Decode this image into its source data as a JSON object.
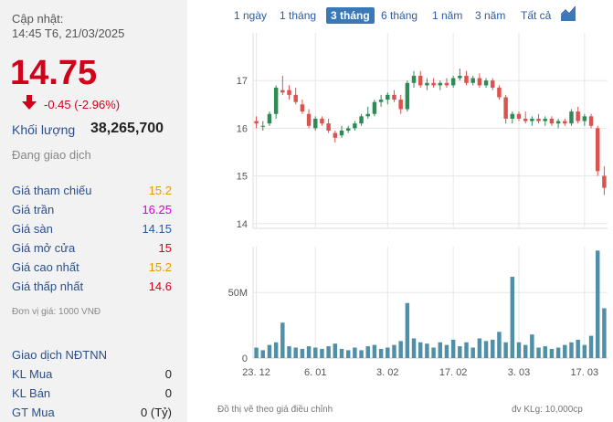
{
  "updated": {
    "label": "Cập nhật:",
    "datetime": "14:45 T6, 21/03/2025"
  },
  "price": {
    "value": "14.75",
    "change": "-0.45 (-2.96%)",
    "color": "#d0021b"
  },
  "volume": {
    "label": "Khối lượng",
    "value": "38,265,700"
  },
  "status": "Đang giao dịch",
  "stats": [
    {
      "label": "Giá tham chiếu",
      "value": "15.2",
      "color": "#e39a00"
    },
    {
      "label": "Giá trần",
      "value": "16.25",
      "color": "#d400d4"
    },
    {
      "label": "Giá sàn",
      "value": "14.15",
      "color": "#1a5fb0"
    },
    {
      "label": "Giá mở cửa",
      "value": "15",
      "color": "#d0021b"
    },
    {
      "label": "Giá cao nhất",
      "value": "15.2",
      "color": "#e39a00"
    },
    {
      "label": "Giá thấp nhất",
      "value": "14.6",
      "color": "#d0021b"
    }
  ],
  "unit_note": "Đơn vị giá: 1000 VNĐ",
  "foreign": {
    "title": "Giao dịch NĐTNN",
    "rows": [
      {
        "label": "KL Mua",
        "value": "0"
      },
      {
        "label": "KL Bán",
        "value": "0"
      },
      {
        "label": "GT Mua",
        "value": "0 (Tỷ)"
      }
    ]
  },
  "tabs": [
    "1 ngày",
    "1 tháng",
    "3 tháng",
    "6 tháng",
    "1 năm",
    "3 năm",
    "Tất cả"
  ],
  "active_tab": "3 tháng",
  "footer": {
    "note": "Đồ thị vẽ theo giá điều chỉnh",
    "unit": "đv KLg: 10,000cp"
  },
  "chart_data": {
    "type": "candlestick",
    "price_axis": {
      "ticks": [
        14,
        15,
        16,
        17
      ],
      "ylim": [
        13.9,
        18.0
      ]
    },
    "volume_axis": {
      "ticks": [
        "0",
        "50M"
      ],
      "tick_values": [
        0,
        50000000
      ],
      "ylim": [
        0,
        85000000
      ]
    },
    "x_ticks": [
      {
        "label": "23. 12",
        "index": 0
      },
      {
        "label": "6. 01",
        "index": 9
      },
      {
        "label": "3. 02",
        "index": 20
      },
      {
        "label": "17. 02",
        "index": 30
      },
      {
        "label": "3. 03",
        "index": 40
      },
      {
        "label": "17. 03",
        "index": 50
      }
    ],
    "up_color": "#2e8b57",
    "down_color": "#d9534f",
    "candles": [
      {
        "o": 16.15,
        "h": 16.25,
        "l": 16.0,
        "c": 16.1,
        "v": 8000000
      },
      {
        "o": 16.05,
        "h": 16.15,
        "l": 15.95,
        "c": 16.05,
        "v": 6000000
      },
      {
        "o": 16.1,
        "h": 16.35,
        "l": 16.05,
        "c": 16.3,
        "v": 10000000
      },
      {
        "o": 16.3,
        "h": 16.9,
        "l": 16.2,
        "c": 16.85,
        "v": 12000000
      },
      {
        "o": 16.8,
        "h": 17.1,
        "l": 16.7,
        "c": 16.75,
        "v": 27000000
      },
      {
        "o": 16.8,
        "h": 16.9,
        "l": 16.6,
        "c": 16.7,
        "v": 9000000
      },
      {
        "o": 16.7,
        "h": 16.85,
        "l": 16.5,
        "c": 16.55,
        "v": 8000000
      },
      {
        "o": 16.5,
        "h": 16.6,
        "l": 16.3,
        "c": 16.35,
        "v": 7000000
      },
      {
        "o": 16.3,
        "h": 16.4,
        "l": 16.0,
        "c": 16.05,
        "v": 9000000
      },
      {
        "o": 16.0,
        "h": 16.25,
        "l": 15.95,
        "c": 16.2,
        "v": 8000000
      },
      {
        "o": 16.2,
        "h": 16.25,
        "l": 16.05,
        "c": 16.1,
        "v": 7000000
      },
      {
        "o": 16.1,
        "h": 16.2,
        "l": 15.9,
        "c": 15.95,
        "v": 9000000
      },
      {
        "o": 15.9,
        "h": 15.95,
        "l": 15.7,
        "c": 15.8,
        "v": 11000000
      },
      {
        "o": 15.85,
        "h": 16.05,
        "l": 15.8,
        "c": 15.95,
        "v": 7000000
      },
      {
        "o": 15.95,
        "h": 16.05,
        "l": 15.9,
        "c": 16.0,
        "v": 6000000
      },
      {
        "o": 16.0,
        "h": 16.15,
        "l": 15.95,
        "c": 16.1,
        "v": 8000000
      },
      {
        "o": 16.1,
        "h": 16.3,
        "l": 16.05,
        "c": 16.25,
        "v": 6000000
      },
      {
        "o": 16.25,
        "h": 16.45,
        "l": 16.2,
        "c": 16.3,
        "v": 9000000
      },
      {
        "o": 16.3,
        "h": 16.6,
        "l": 16.25,
        "c": 16.55,
        "v": 10000000
      },
      {
        "o": 16.55,
        "h": 16.7,
        "l": 16.45,
        "c": 16.6,
        "v": 7000000
      },
      {
        "o": 16.6,
        "h": 16.75,
        "l": 16.5,
        "c": 16.7,
        "v": 8000000
      },
      {
        "o": 16.7,
        "h": 16.8,
        "l": 16.55,
        "c": 16.6,
        "v": 10000000
      },
      {
        "o": 16.6,
        "h": 16.7,
        "l": 16.3,
        "c": 16.4,
        "v": 13000000
      },
      {
        "o": 16.4,
        "h": 17.0,
        "l": 16.35,
        "c": 16.95,
        "v": 42000000
      },
      {
        "o": 16.95,
        "h": 17.2,
        "l": 16.85,
        "c": 17.1,
        "v": 15000000
      },
      {
        "o": 17.1,
        "h": 17.2,
        "l": 16.85,
        "c": 16.9,
        "v": 12000000
      },
      {
        "o": 16.9,
        "h": 17.05,
        "l": 16.8,
        "c": 16.95,
        "v": 11000000
      },
      {
        "o": 16.95,
        "h": 17.05,
        "l": 16.85,
        "c": 16.9,
        "v": 8000000
      },
      {
        "o": 16.9,
        "h": 17.0,
        "l": 16.8,
        "c": 16.95,
        "v": 12000000
      },
      {
        "o": 16.95,
        "h": 17.05,
        "l": 16.85,
        "c": 16.9,
        "v": 10000000
      },
      {
        "o": 16.9,
        "h": 17.1,
        "l": 16.85,
        "c": 17.05,
        "v": 14000000
      },
      {
        "o": 17.05,
        "h": 17.25,
        "l": 17.0,
        "c": 17.1,
        "v": 9000000
      },
      {
        "o": 17.1,
        "h": 17.2,
        "l": 16.9,
        "c": 16.95,
        "v": 12000000
      },
      {
        "o": 16.95,
        "h": 17.1,
        "l": 16.9,
        "c": 17.05,
        "v": 8000000
      },
      {
        "o": 17.05,
        "h": 17.15,
        "l": 16.85,
        "c": 16.9,
        "v": 15000000
      },
      {
        "o": 16.9,
        "h": 17.05,
        "l": 16.85,
        "c": 17.0,
        "v": 13000000
      },
      {
        "o": 17.0,
        "h": 17.05,
        "l": 16.8,
        "c": 16.85,
        "v": 14000000
      },
      {
        "o": 16.85,
        "h": 16.9,
        "l": 16.6,
        "c": 16.65,
        "v": 20000000
      },
      {
        "o": 16.65,
        "h": 16.7,
        "l": 16.1,
        "c": 16.2,
        "v": 12000000
      },
      {
        "o": 16.2,
        "h": 16.35,
        "l": 16.1,
        "c": 16.3,
        "v": 62000000
      },
      {
        "o": 16.3,
        "h": 16.35,
        "l": 16.15,
        "c": 16.2,
        "v": 12000000
      },
      {
        "o": 16.2,
        "h": 16.35,
        "l": 16.1,
        "c": 16.15,
        "v": 10000000
      },
      {
        "o": 16.15,
        "h": 16.25,
        "l": 16.05,
        "c": 16.2,
        "v": 18000000
      },
      {
        "o": 16.2,
        "h": 16.3,
        "l": 16.1,
        "c": 16.15,
        "v": 8000000
      },
      {
        "o": 16.15,
        "h": 16.25,
        "l": 16.05,
        "c": 16.2,
        "v": 9000000
      },
      {
        "o": 16.2,
        "h": 16.25,
        "l": 16.05,
        "c": 16.1,
        "v": 7000000
      },
      {
        "o": 16.1,
        "h": 16.2,
        "l": 16.0,
        "c": 16.15,
        "v": 8000000
      },
      {
        "o": 16.15,
        "h": 16.2,
        "l": 16.05,
        "c": 16.1,
        "v": 10000000
      },
      {
        "o": 16.1,
        "h": 16.4,
        "l": 16.05,
        "c": 16.35,
        "v": 12000000
      },
      {
        "o": 16.35,
        "h": 16.45,
        "l": 16.1,
        "c": 16.15,
        "v": 14000000
      },
      {
        "o": 16.15,
        "h": 16.3,
        "l": 16.05,
        "c": 16.25,
        "v": 10000000
      },
      {
        "o": 16.25,
        "h": 16.3,
        "l": 16.0,
        "c": 16.05,
        "v": 17000000
      },
      {
        "o": 16.0,
        "h": 16.05,
        "l": 15.0,
        "c": 15.1,
        "v": 82000000
      },
      {
        "o": 15.0,
        "h": 15.2,
        "l": 14.6,
        "c": 14.75,
        "v": 38000000
      }
    ]
  }
}
